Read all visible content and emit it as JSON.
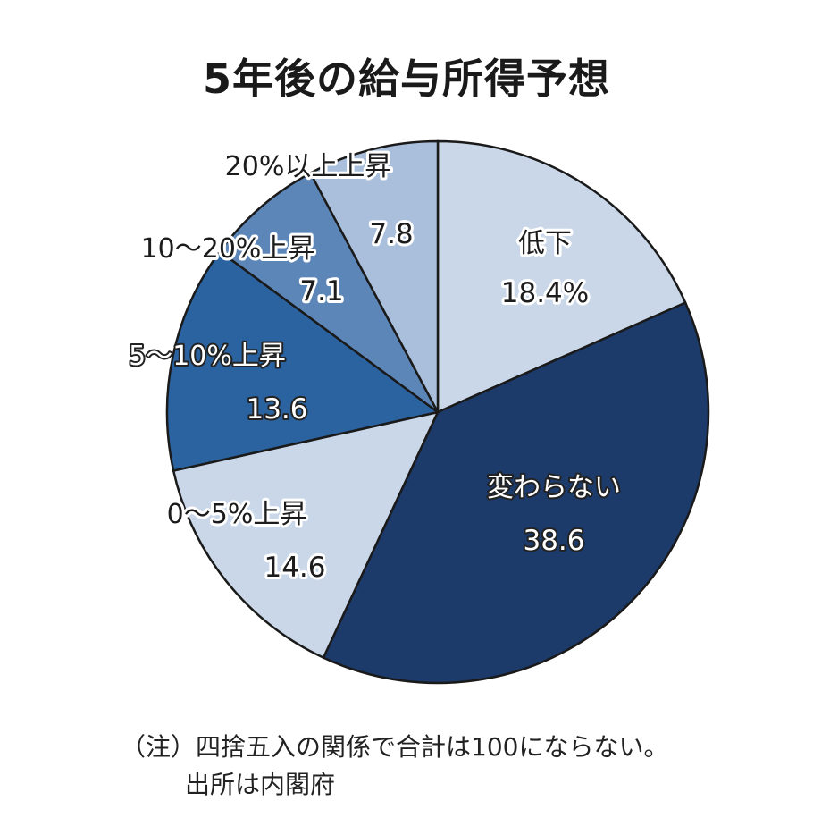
{
  "chart_data": {
    "type": "pie",
    "title": "5年後の給与所得予想",
    "slices": [
      {
        "label": "低下",
        "value": 18.4,
        "value_text": "18.4%",
        "color": "#c9d7e8"
      },
      {
        "label": "変わらない",
        "value": 38.6,
        "value_text": "38.6",
        "color": "#1c3a6a"
      },
      {
        "label": "0～5%上昇",
        "value": 14.6,
        "value_text": "14.6",
        "color": "#c9d7e8"
      },
      {
        "label": "5～10%上昇",
        "value": 13.6,
        "value_text": "13.6",
        "color": "#2b63a0"
      },
      {
        "label": "10～20%上昇",
        "value": 7.1,
        "value_text": "7.1",
        "color": "#5d86b8"
      },
      {
        "label": "20%以上上昇",
        "value": 7.8,
        "value_text": "7.8",
        "color": "#a9bfdb"
      }
    ],
    "start_angle": "12 o'clock",
    "direction": "clockwise"
  },
  "footnote": {
    "line1": "（注）四捨五入の関係で合計は100にならない。",
    "line2": "出所は内閣府"
  }
}
